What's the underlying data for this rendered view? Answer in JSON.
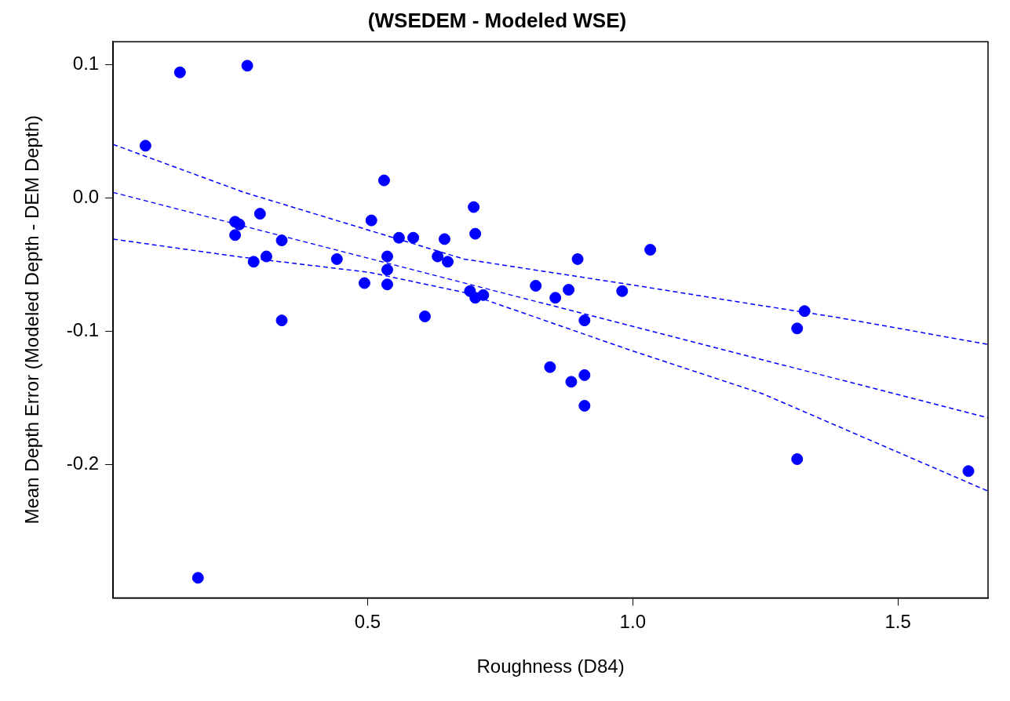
{
  "chart_data": {
    "type": "scatter",
    "title": "(WSEDEM - Modeled WSE)",
    "xlabel": "Roughness (D84)",
    "ylabel": "Mean Depth Error (Modeled Depth - DEM Depth)",
    "xlim": [
      0.02,
      1.67
    ],
    "ylim": [
      -0.3,
      0.117
    ],
    "xticks": [
      0.5,
      {
        "value": 1,
        "label": "1.0"
      },
      1.5
    ],
    "yticks": [
      {
        "value": -0.2,
        "label": "-0.2"
      },
      {
        "value": -0.1,
        "label": "-0.1"
      },
      {
        "value": 0,
        "label": "0.0"
      },
      0.1
    ],
    "grid": false,
    "legend": false,
    "series": [
      {
        "color": "#0000ff",
        "marker": "circle",
        "x": [
          0.081,
          0.146,
          0.273,
          0.18,
          0.25,
          0.258,
          0.25,
          0.297,
          0.285,
          0.309,
          0.338,
          0.338,
          0.442,
          0.494,
          0.507,
          0.531,
          0.537,
          0.537,
          0.537,
          0.559,
          0.586,
          0.608,
          0.632,
          0.645,
          0.651,
          0.693,
          0.7,
          0.703,
          0.703,
          0.718,
          0.817,
          0.854,
          0.844,
          0.879,
          0.884,
          0.896,
          0.909,
          0.909,
          0.909,
          0.98,
          1.033,
          1.31,
          1.324,
          1.31,
          1.633
        ],
        "values": [
          0.039,
          0.094,
          0.099,
          -0.285,
          -0.018,
          -0.02,
          -0.028,
          -0.012,
          -0.048,
          -0.044,
          -0.032,
          -0.092,
          -0.046,
          -0.064,
          -0.017,
          0.013,
          -0.044,
          -0.054,
          -0.065,
          -0.03,
          -0.03,
          -0.089,
          -0.044,
          -0.031,
          -0.048,
          -0.07,
          -0.007,
          -0.027,
          -0.075,
          -0.073,
          -0.066,
          -0.075,
          -0.127,
          -0.069,
          -0.138,
          -0.046,
          -0.092,
          -0.133,
          -0.156,
          -0.07,
          -0.039,
          -0.098,
          -0.085,
          -0.196,
          -0.205
        ]
      },
      {
        "type": "line",
        "color": "#0000ff",
        "marker": "none",
        "line_style": "dashed",
        "x": [
          0.02,
          0.8,
          1.67
        ],
        "values": [
          0.004,
          -0.076,
          -0.165
        ]
      },
      {
        "type": "line",
        "color": "#0000ff",
        "marker": "none",
        "line_style": "dashed",
        "x": [
          0.02,
          0.267,
          0.682,
          0.993,
          1.245,
          1.39,
          1.67
        ],
        "values": [
          0.04,
          0.004,
          -0.046,
          -0.065,
          -0.081,
          -0.09,
          -0.11
        ]
      },
      {
        "type": "line",
        "color": "#0000ff",
        "marker": "none",
        "line_style": "dashed",
        "x": [
          0.02,
          0.252,
          0.504,
          0.682,
          0.993,
          1.245,
          1.67
        ],
        "values": [
          -0.031,
          -0.044,
          -0.056,
          -0.071,
          -0.114,
          -0.147,
          -0.22
        ]
      }
    ]
  }
}
